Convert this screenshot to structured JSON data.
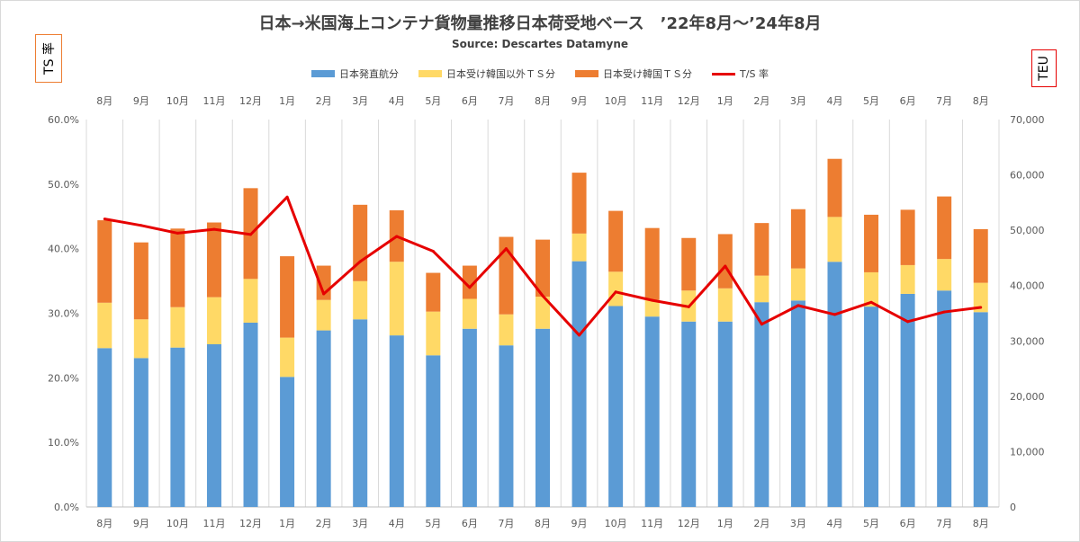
{
  "chart_data": {
    "type": "bar",
    "title": "日本→米国海上コンテナ貨物量推移日本荷受地ベース　’22年8月～’24年8月",
    "subtitle": "Source: Descartes Datamyne",
    "left_axis_title": "TS 率",
    "right_axis_title": "TEU",
    "categories": [
      "8月",
      "9月",
      "10月",
      "11月",
      "12月",
      "1月",
      "2月",
      "3月",
      "4月",
      "5月",
      "6月",
      "7月",
      "8月",
      "9月",
      "10月",
      "11月",
      "12月",
      "1月",
      "2月",
      "3月",
      "4月",
      "5月",
      "6月",
      "7月",
      "8月"
    ],
    "stacked": true,
    "series": [
      {
        "name": "日本発直航分",
        "color": "#5b9bd5",
        "axis": "right",
        "values": [
          28700,
          26900,
          28800,
          29400,
          33300,
          23500,
          31900,
          33900,
          31000,
          27400,
          32200,
          29200,
          32200,
          44400,
          36300,
          34400,
          33500,
          33500,
          37000,
          37300,
          44300,
          36200,
          38500,
          39100,
          35200
        ]
      },
      {
        "name": "日本受け韓国以外ＴＳ分",
        "color": "#ffd966",
        "axis": "right",
        "values": [
          8200,
          7000,
          7300,
          8500,
          7900,
          7100,
          5500,
          6900,
          13300,
          7900,
          5400,
          5600,
          5800,
          5000,
          6200,
          3000,
          5600,
          6000,
          4800,
          5800,
          8100,
          6200,
          5200,
          5700,
          5300
        ]
      },
      {
        "name": "日本受け韓国ＴＳ分",
        "color": "#ed7d31",
        "axis": "right",
        "values": [
          14900,
          13900,
          14200,
          13500,
          16400,
          14700,
          6200,
          13800,
          9300,
          7000,
          6000,
          14000,
          10300,
          11000,
          11000,
          13000,
          9500,
          9800,
          9500,
          10700,
          10500,
          10400,
          10000,
          11300,
          9700
        ]
      },
      {
        "name": "T/S 率",
        "type": "line",
        "color": "#e60000",
        "axis": "left",
        "values": [
          44.6,
          43.6,
          42.4,
          43.0,
          42.2,
          48.0,
          33.0,
          38.0,
          41.9,
          39.6,
          34.0,
          40.0,
          32.7,
          26.6,
          33.3,
          32.0,
          31.0,
          37.3,
          28.3,
          31.2,
          29.8,
          31.7,
          28.7,
          30.2,
          30.9
        ]
      }
    ],
    "left_axis": {
      "min": 0,
      "max": 60,
      "step": 10,
      "format": "percent",
      "tick_labels": [
        "0.0%",
        "10.0%",
        "20.0%",
        "30.0%",
        "40.0%",
        "50.0%",
        "60.0%"
      ]
    },
    "right_axis": {
      "min": 0,
      "max": 70000,
      "step": 10000,
      "tick_labels": [
        "0",
        "10,000",
        "20,000",
        "30,000",
        "40,000",
        "50,000",
        "60,000",
        "70,000"
      ]
    },
    "legend_position": "top",
    "grid": "vertical"
  }
}
